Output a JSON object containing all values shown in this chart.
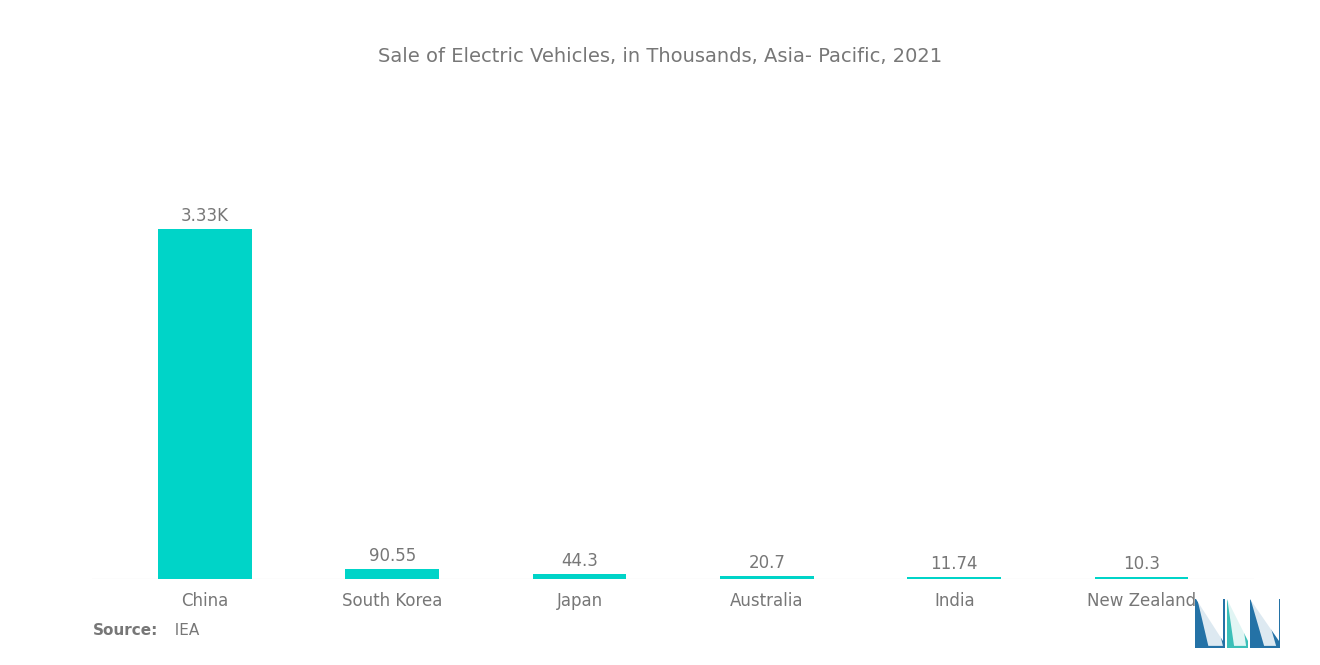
{
  "title": "Sale of Electric Vehicles, in Thousands, Asia- Pacific, 2021",
  "categories": [
    "China",
    "South Korea",
    "Japan",
    "Australia",
    "India",
    "New Zealand"
  ],
  "values": [
    3330,
    90.55,
    44.3,
    20.7,
    11.74,
    10.3
  ],
  "labels": [
    "3.33K",
    "90.55",
    "44.3",
    "20.7",
    "11.74",
    "10.3"
  ],
  "bar_color": "#00D4C8",
  "background_color": "#ffffff",
  "title_color": "#777777",
  "label_color": "#777777",
  "source_bold": "Source:",
  "source_normal": "  IEA",
  "ylim": [
    0,
    3800
  ],
  "bar_width": 0.5
}
